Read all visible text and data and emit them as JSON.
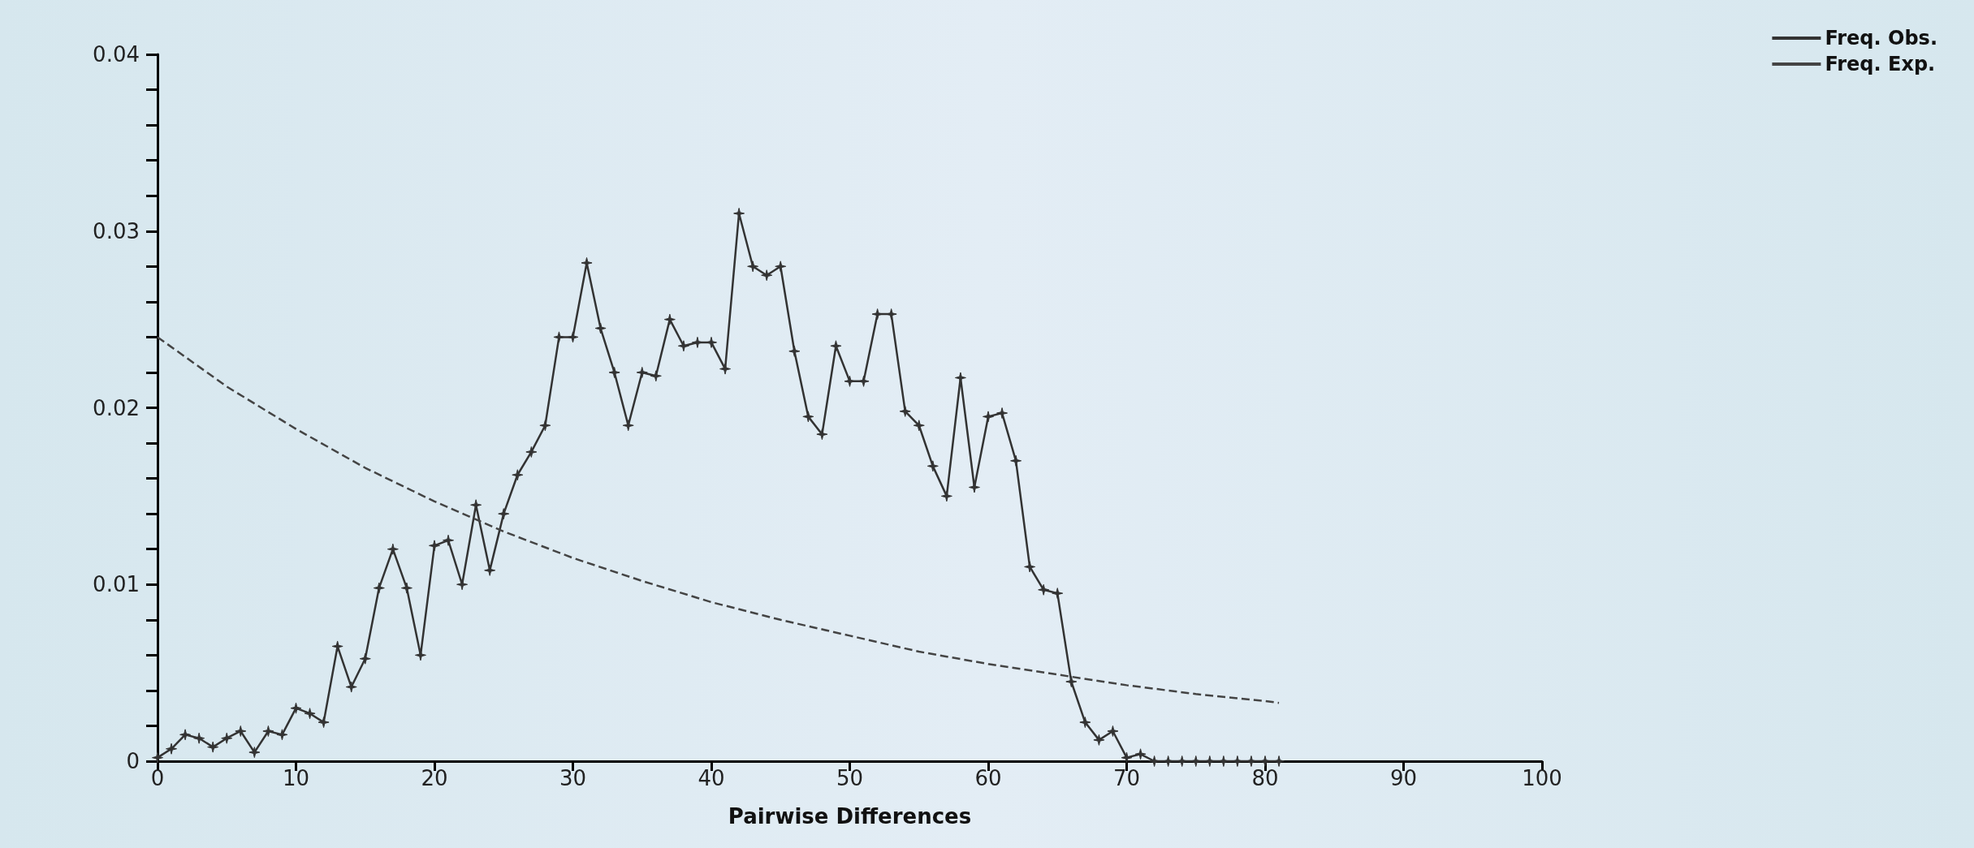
{
  "chart_data": {
    "type": "line",
    "xlabel": "Pairwise Differences",
    "xlim": [
      0,
      100
    ],
    "xticks": [
      0,
      10,
      20,
      30,
      40,
      50,
      60,
      70,
      80,
      90,
      100
    ],
    "ylim": [
      0,
      0.04
    ],
    "yticks": [
      0,
      {
        "value": 0.002,
        "label": null
      },
      {
        "value": 0.004,
        "label": null
      },
      {
        "value": 0.006,
        "label": null
      },
      {
        "value": 0.008,
        "label": null
      },
      0.01,
      {
        "value": 0.012,
        "label": null
      },
      {
        "value": 0.014,
        "label": null
      },
      {
        "value": 0.016,
        "label": null
      },
      {
        "value": 0.018,
        "label": null
      },
      0.02,
      {
        "value": 0.022,
        "label": null
      },
      {
        "value": 0.024,
        "label": null
      },
      {
        "value": 0.026,
        "label": null
      },
      {
        "value": 0.028,
        "label": null
      },
      0.03,
      {
        "value": 0.032,
        "label": null
      },
      {
        "value": 0.034,
        "label": null
      },
      {
        "value": 0.036,
        "label": null
      },
      {
        "value": 0.038,
        "label": null
      },
      0.04
    ],
    "grid": false,
    "legend": "top right",
    "series": [
      {
        "name": "Freq. Obs.",
        "color": "#333333",
        "marker": "star",
        "line_style": "solid",
        "x": [
          0,
          1,
          2,
          3,
          4,
          5,
          6,
          7,
          8,
          9,
          10,
          11,
          12,
          13,
          14,
          15,
          16,
          17,
          18,
          19,
          20,
          21,
          22,
          23,
          24,
          25,
          26,
          27,
          28,
          29,
          30,
          31,
          32,
          33,
          34,
          35,
          36,
          37,
          38,
          39,
          40,
          41,
          42,
          43,
          44,
          45,
          46,
          47,
          48,
          49,
          50,
          51,
          52,
          53,
          54,
          55,
          56,
          57,
          58,
          59,
          60,
          61,
          62,
          63,
          64,
          65,
          66,
          67,
          68,
          69,
          70,
          71,
          72,
          73,
          74,
          75,
          76,
          77,
          78,
          79,
          80,
          81
        ],
        "values": [
          0.0002,
          0.0007,
          0.0015,
          0.0013,
          0.0008,
          0.0013,
          0.0017,
          0.0005,
          0.0017,
          0.0015,
          0.003,
          0.0027,
          0.0022,
          0.0065,
          0.0042,
          0.0058,
          0.0098,
          0.012,
          0.0098,
          0.006,
          0.0122,
          0.0125,
          0.01,
          0.0145,
          0.0108,
          0.014,
          0.0162,
          0.0175,
          0.019,
          0.024,
          0.024,
          0.0282,
          0.0245,
          0.022,
          0.019,
          0.022,
          0.0218,
          0.025,
          0.0235,
          0.0237,
          0.0237,
          0.0222,
          0.031,
          0.028,
          0.0275,
          0.028,
          0.0232,
          0.0195,
          0.0185,
          0.0235,
          0.0215,
          0.0215,
          0.0253,
          0.0253,
          0.0198,
          0.019,
          0.0167,
          0.015,
          0.0217,
          0.0155,
          0.0195,
          0.0197,
          0.017,
          0.011,
          0.0097,
          0.0095,
          0.0045,
          0.0022,
          0.0012,
          0.0017,
          0.0002,
          0.0004,
          0,
          0,
          0,
          0,
          0,
          0,
          0,
          0,
          0,
          0
        ]
      },
      {
        "name": "Freq. Exp.",
        "color": "#444444",
        "marker": "none",
        "line_style": "dashed",
        "x": [
          0,
          5,
          10,
          15,
          20,
          25,
          30,
          35,
          40,
          45,
          50,
          55,
          60,
          65,
          70,
          75,
          80,
          81
        ],
        "values": [
          0.024,
          0.0212,
          0.0188,
          0.0166,
          0.0147,
          0.013,
          0.0115,
          0.0102,
          0.009,
          0.008,
          0.0071,
          0.0062,
          0.0055,
          0.0049,
          0.0043,
          0.0038,
          0.0034,
          0.0033
        ]
      }
    ]
  }
}
